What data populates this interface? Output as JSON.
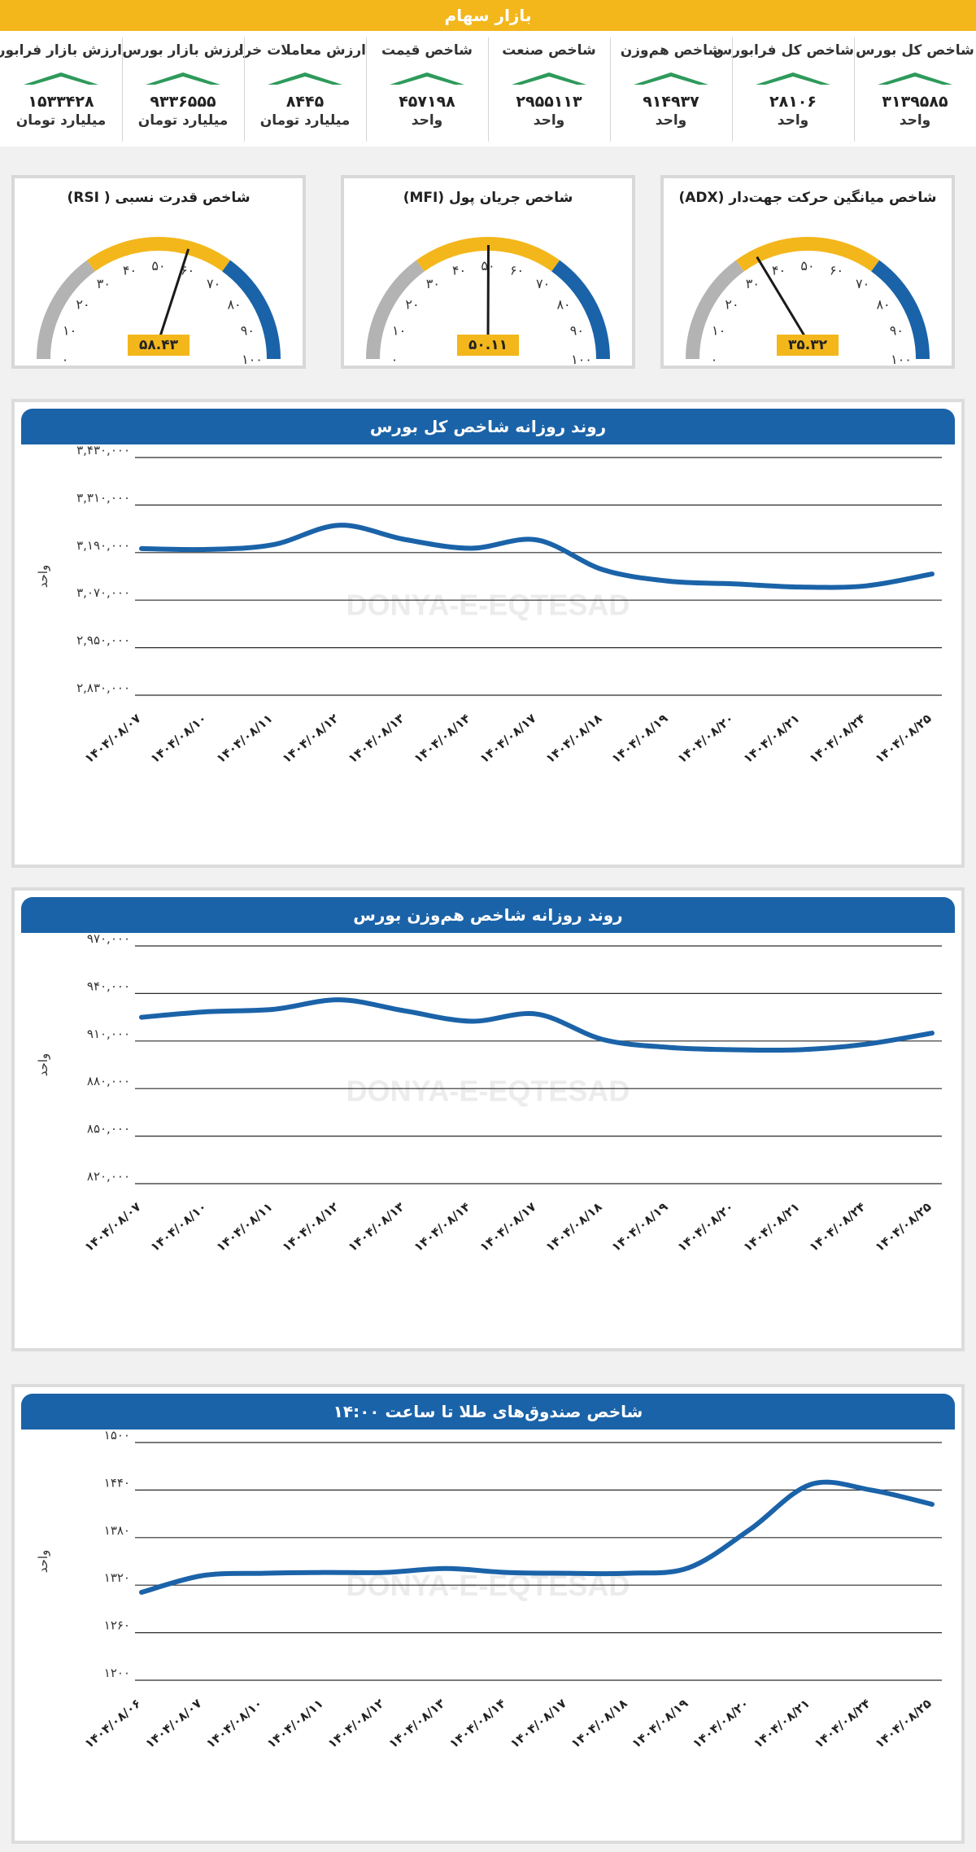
{
  "header": {
    "title": "بازار سهام"
  },
  "indices": [
    {
      "name": "شاخص کل بورس",
      "value": "۳۱۳۹۵۸۵",
      "unit": "واحد"
    },
    {
      "name": "شاخص کل فرابورس",
      "value": "۲۸۱۰۶",
      "unit": "واحد"
    },
    {
      "name": "شاخص هم‌وزن",
      "value": "۹۱۴۹۳۷",
      "unit": "واحد"
    },
    {
      "name": "شاخص صنعت",
      "value": "۲۹۵۵۱۱۳",
      "unit": "واحد"
    },
    {
      "name": "شاخص قیمت",
      "value": "۴۵۷۱۹۸",
      "unit": "واحد"
    },
    {
      "name": "ارزش معاملات خرد",
      "value": "۸۴۴۵",
      "unit": "میلیارد تومان"
    },
    {
      "name": "ارزش بازار بورس",
      "value": "۹۳۳۶۵۵۵",
      "unit": "میلیارد تومان"
    },
    {
      "name": "ارزش بازار فرابورس",
      "value": "۱۵۳۳۴۲۸",
      "unit": "میلیارد تومان"
    }
  ],
  "colors": {
    "accent": "#f3b71c",
    "brand_blue": "#1b63a8",
    "gray": "#b3b3b3",
    "up_arrow": "#2e9a5b"
  },
  "gauges": [
    {
      "title": "شاخص قدرت نسبی ( RSI)",
      "value": 58.43,
      "display": "۵۸.۴۳",
      "ticks": [
        "۰",
        "۱۰",
        "۲۰",
        "۳۰",
        "۴۰",
        "۵۰",
        "۶۰",
        "۷۰",
        "۸۰",
        "۹۰",
        "۱۰۰"
      ]
    },
    {
      "title": "شاخص جریان پول (MFI)",
      "value": 50.11,
      "display": "۵۰.۱۱",
      "ticks": [
        "۰",
        "۱۰",
        "۲۰",
        "۳۰",
        "۴۰",
        "۵۰",
        "۶۰",
        "۷۰",
        "۸۰",
        "۹۰",
        "۱۰۰"
      ]
    },
    {
      "title": "شاخص میانگین حرکت جهت‌دار (ADX)",
      "value": 35.32,
      "display": "۳۵.۳۲",
      "ticks": [
        "۰",
        "۱۰",
        "۲۰",
        "۳۰",
        "۴۰",
        "۵۰",
        "۶۰",
        "۷۰",
        "۸۰",
        "۹۰",
        "۱۰۰"
      ]
    }
  ],
  "watermark": {
    "text": "DONYA-E-EQTESAD"
  },
  "chart_data": [
    {
      "type": "line",
      "title": "روند روزانه شاخص کل بورس",
      "ylabel": "واحد",
      "ylim": [
        2830000,
        3430000
      ],
      "y_ticks": [
        3430000,
        3310000,
        3190000,
        3070000,
        2950000,
        2830000
      ],
      "y_tick_labels": [
        "۳,۴۳۰,۰۰۰",
        "۳,۳۱۰,۰۰۰",
        "۳,۱۹۰,۰۰۰",
        "۳,۰۷۰,۰۰۰",
        "۲,۹۵۰,۰۰۰",
        "۲,۸۳۰,۰۰۰"
      ],
      "categories": [
        "۱۴۰۴/۰۸/۰۷",
        "۱۴۰۴/۰۸/۱۰",
        "۱۴۰۴/۰۸/۱۱",
        "۱۴۰۴/۰۸/۱۲",
        "۱۴۰۴/۰۸/۱۳",
        "۱۴۰۴/۰۸/۱۴",
        "۱۴۰۴/۰۸/۱۷",
        "۱۴۰۴/۰۸/۱۸",
        "۱۴۰۴/۰۸/۱۹",
        "۱۴۰۴/۰۸/۲۰",
        "۱۴۰۴/۰۸/۲۱",
        "۱۴۰۴/۰۸/۲۴",
        "۱۴۰۴/۰۸/۲۵"
      ],
      "values": [
        3200000,
        3198000,
        3210000,
        3259000,
        3223000,
        3201000,
        3222000,
        3147000,
        3118000,
        3111000,
        3103000,
        3106000,
        3136000
      ],
      "grid": true
    },
    {
      "type": "line",
      "title": "روند روزانه شاخص هم‌وزن بورس",
      "ylabel": "واحد",
      "ylim": [
        820000,
        970000
      ],
      "y_ticks": [
        970000,
        940000,
        910000,
        880000,
        850000,
        820000
      ],
      "y_tick_labels": [
        "۹۷۰,۰۰۰",
        "۹۴۰,۰۰۰",
        "۹۱۰,۰۰۰",
        "۸۸۰,۰۰۰",
        "۸۵۰,۰۰۰",
        "۸۲۰,۰۰۰"
      ],
      "categories": [
        "۱۴۰۴/۰۸/۰۷",
        "۱۴۰۴/۰۸/۱۰",
        "۱۴۰۴/۰۸/۱۱",
        "۱۴۰۴/۰۸/۱۲",
        "۱۴۰۴/۰۸/۱۳",
        "۱۴۰۴/۰۸/۱۴",
        "۱۴۰۴/۰۸/۱۷",
        "۱۴۰۴/۰۸/۱۸",
        "۱۴۰۴/۰۸/۱۹",
        "۱۴۰۴/۰۸/۲۰",
        "۱۴۰۴/۰۸/۲۱",
        "۱۴۰۴/۰۸/۲۴",
        "۱۴۰۴/۰۸/۲۵"
      ],
      "values": [
        925000,
        928500,
        930000,
        936000,
        929000,
        922500,
        927000,
        911000,
        906000,
        904500,
        904500,
        908000,
        915000
      ],
      "grid": true
    },
    {
      "type": "line",
      "title": "شاخص صندوق‌های طلا تا ساعت ۱۴:۰۰",
      "ylabel": "واحد",
      "ylim": [
        1200,
        1500
      ],
      "y_ticks": [
        1500,
        1440,
        1380,
        1320,
        1260,
        1200
      ],
      "y_tick_labels": [
        "۱۵۰۰",
        "۱۴۴۰",
        "۱۳۸۰",
        "۱۳۲۰",
        "۱۲۶۰",
        "۱۲۰۰"
      ],
      "categories": [
        "۱۴۰۴/۰۸/۰۶",
        "۱۴۰۴/۰۸/۰۷",
        "۱۴۰۴/۰۸/۱۰",
        "۱۴۰۴/۰۸/۱۱",
        "۱۴۰۴/۰۸/۱۲",
        "۱۴۰۴/۰۸/۱۳",
        "۱۴۰۴/۰۸/۱۴",
        "۱۴۰۴/۰۸/۱۷",
        "۱۴۰۴/۰۸/۱۸",
        "۱۴۰۴/۰۸/۱۹",
        "۱۴۰۴/۰۸/۲۰",
        "۱۴۰۴/۰۸/۲۱",
        "۱۴۰۴/۰۸/۲۴",
        "۱۴۰۴/۰۸/۲۵"
      ],
      "values": [
        1311,
        1332,
        1335,
        1336,
        1336,
        1341,
        1336,
        1335,
        1335,
        1342,
        1390,
        1447,
        1440,
        1422
      ],
      "grid": true
    }
  ]
}
